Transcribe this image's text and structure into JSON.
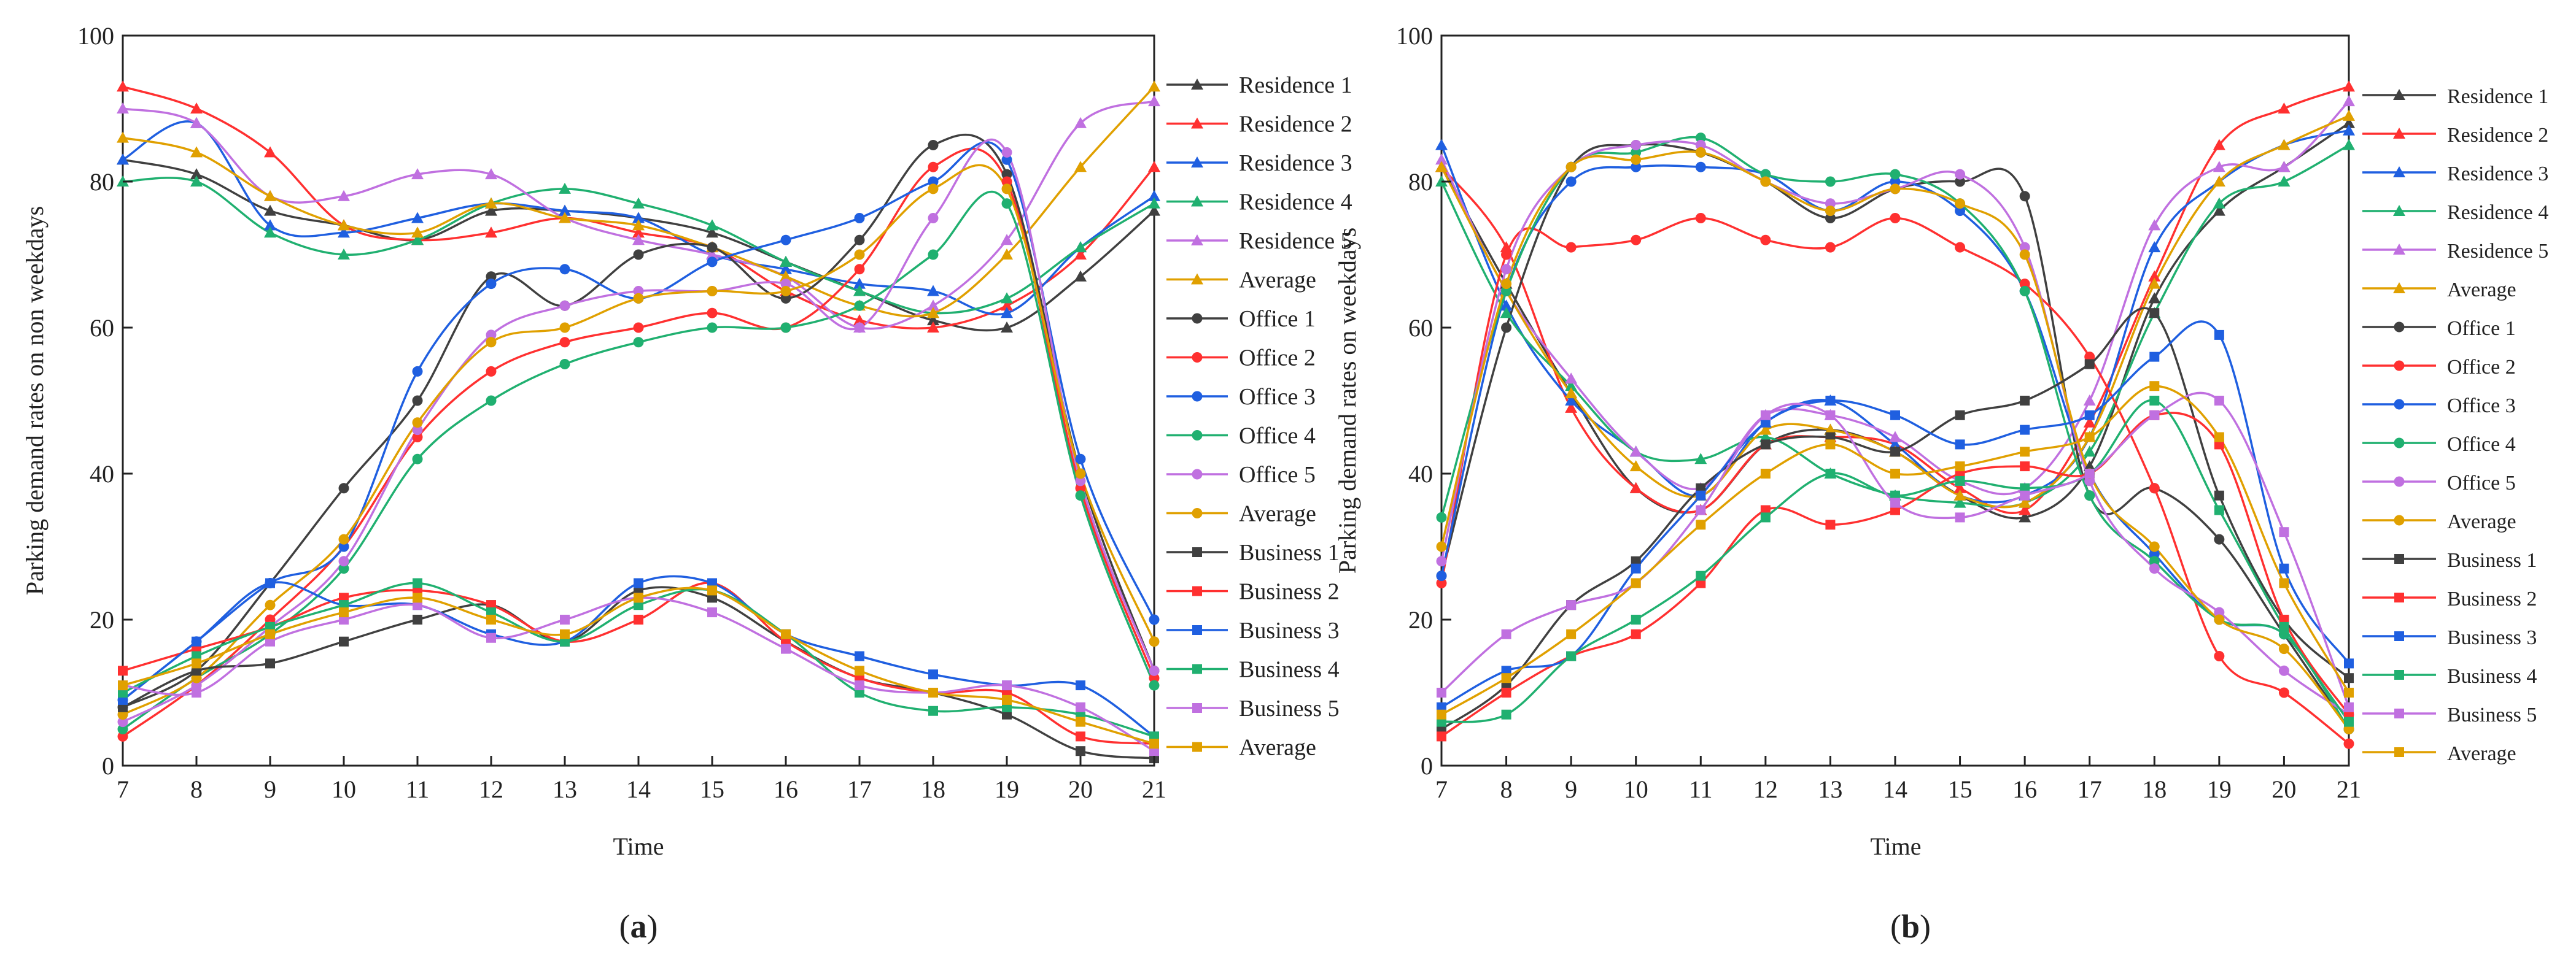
{
  "figure": {
    "panels": [
      {
        "caption_letter": "a"
      },
      {
        "caption_letter": "b"
      }
    ]
  },
  "chart_data": [
    {
      "type": "line",
      "panel": "a",
      "title": "",
      "xlabel": "Time",
      "ylabel": "Parking demand rates on non weekdays",
      "xlim": [
        7,
        21
      ],
      "ylim": [
        0,
        100
      ],
      "xticks": [
        7,
        8,
        9,
        10,
        11,
        12,
        13,
        14,
        15,
        16,
        17,
        18,
        19,
        20,
        21
      ],
      "yticks": [
        0,
        20,
        40,
        60,
        80,
        100
      ],
      "x": [
        7,
        8,
        9,
        10,
        11,
        12,
        13,
        14,
        15,
        16,
        17,
        18,
        19,
        20,
        21
      ],
      "legend_position": "right",
      "series": [
        {
          "name": "Residence 1",
          "color": "#404040",
          "marker": "triangle",
          "values": [
            83,
            81,
            76,
            74,
            72,
            76,
            76,
            75,
            73,
            69,
            65,
            61,
            60,
            67,
            76
          ]
        },
        {
          "name": "Residence 2",
          "color": "#ff3030",
          "marker": "triangle",
          "values": [
            93,
            90,
            84,
            74,
            72,
            73,
            75,
            73,
            71,
            65,
            61,
            60,
            63,
            70,
            82
          ]
        },
        {
          "name": "Residence 3",
          "color": "#1f5fe0",
          "marker": "triangle",
          "values": [
            83,
            88,
            74,
            73,
            75,
            77,
            76,
            75,
            70,
            68,
            66,
            65,
            62,
            71,
            78
          ]
        },
        {
          "name": "Residence 4",
          "color": "#20b070",
          "marker": "triangle",
          "values": [
            80,
            80,
            73,
            70,
            72,
            77,
            79,
            77,
            74,
            69,
            65,
            62,
            64,
            71,
            77
          ]
        },
        {
          "name": "Residence 5",
          "color": "#c070e0",
          "marker": "triangle",
          "values": [
            90,
            88,
            78,
            78,
            81,
            81,
            75,
            72,
            70,
            67,
            60,
            63,
            72,
            88,
            91
          ]
        },
        {
          "name": "Average",
          "color": "#e0a000",
          "marker": "triangle",
          "values": [
            86,
            84,
            78,
            74,
            73,
            77,
            75,
            74,
            71,
            67,
            63,
            62,
            70,
            82,
            93
          ]
        },
        {
          "name": "Office 1",
          "color": "#404040",
          "marker": "circle",
          "values": [
            8,
            13,
            25,
            38,
            50,
            67,
            63,
            70,
            71,
            64,
            72,
            85,
            81,
            40,
            13
          ]
        },
        {
          "name": "Office 2",
          "color": "#ff3030",
          "marker": "circle",
          "values": [
            4,
            11,
            20,
            30,
            45,
            54,
            58,
            60,
            62,
            60,
            68,
            82,
            80,
            38,
            12
          ]
        },
        {
          "name": "Office 3",
          "color": "#1f5fe0",
          "marker": "circle",
          "values": [
            9,
            17,
            25,
            30,
            54,
            66,
            68,
            64,
            69,
            72,
            75,
            80,
            83,
            42,
            20
          ]
        },
        {
          "name": "Office 4",
          "color": "#20b070",
          "marker": "circle",
          "values": [
            5,
            12,
            18,
            27,
            42,
            50,
            55,
            58,
            60,
            60,
            63,
            70,
            77,
            37,
            11
          ]
        },
        {
          "name": "Office 5",
          "color": "#c070e0",
          "marker": "circle",
          "values": [
            6,
            11,
            19,
            28,
            46,
            59,
            63,
            65,
            65,
            66,
            60,
            75,
            84,
            39,
            13
          ]
        },
        {
          "name": "Average",
          "color": "#e0a000",
          "marker": "circle",
          "values": [
            7,
            12,
            22,
            31,
            47,
            58,
            60,
            64,
            65,
            65,
            70,
            79,
            79,
            40,
            17
          ]
        },
        {
          "name": "Business 1",
          "color": "#404040",
          "marker": "square",
          "values": [
            8,
            13,
            14,
            17,
            20,
            22,
            17,
            24,
            23,
            17,
            12,
            10,
            7,
            2,
            1
          ]
        },
        {
          "name": "Business 2",
          "color": "#ff3030",
          "marker": "square",
          "values": [
            13,
            16,
            19,
            23,
            24,
            22,
            17,
            20,
            25,
            17,
            12,
            10,
            10,
            4,
            3
          ]
        },
        {
          "name": "Business 3",
          "color": "#1f5fe0",
          "marker": "square",
          "values": [
            9,
            17,
            25,
            22,
            22,
            18,
            17,
            25,
            25,
            18,
            15,
            12.5,
            11,
            11,
            4
          ]
        },
        {
          "name": "Business 4",
          "color": "#20b070",
          "marker": "square",
          "values": [
            10,
            15,
            19,
            22,
            25,
            21,
            17,
            22,
            24,
            18,
            10,
            7.5,
            8,
            7,
            4
          ]
        },
        {
          "name": "Business 5",
          "color": "#c070e0",
          "marker": "square",
          "values": [
            11,
            10,
            17,
            20,
            22,
            17.5,
            20,
            23,
            21,
            16,
            11,
            10,
            11,
            8,
            2
          ]
        },
        {
          "name": "Average",
          "color": "#e0a000",
          "marker": "square",
          "values": [
            11,
            14,
            18,
            21,
            23,
            20,
            18,
            23,
            24,
            18,
            13,
            10,
            9,
            6,
            3
          ]
        }
      ]
    },
    {
      "type": "line",
      "panel": "b",
      "title": "",
      "xlabel": "Time",
      "ylabel": "Parking demand rates on weekdays",
      "xlim": [
        7,
        21
      ],
      "ylim": [
        0,
        100
      ],
      "xticks": [
        7,
        8,
        9,
        10,
        11,
        12,
        13,
        14,
        15,
        16,
        17,
        18,
        19,
        20,
        21
      ],
      "yticks": [
        0,
        20,
        40,
        60,
        80,
        100
      ],
      "x": [
        7,
        8,
        9,
        10,
        11,
        12,
        13,
        14,
        15,
        16,
        17,
        18,
        19,
        20,
        21
      ],
      "legend_position": "right",
      "series": [
        {
          "name": "Residence 1",
          "color": "#404040",
          "marker": "triangle",
          "values": [
            82,
            66,
            51,
            38,
            35,
            44,
            46,
            43,
            37,
            34,
            41,
            64,
            76,
            82,
            88
          ]
        },
        {
          "name": "Residence 2",
          "color": "#ff3030",
          "marker": "triangle",
          "values": [
            82,
            71,
            49,
            38,
            35,
            44,
            45,
            44,
            38,
            35,
            47,
            67,
            85,
            90,
            93
          ]
        },
        {
          "name": "Residence 3",
          "color": "#1f5fe0",
          "marker": "triangle",
          "values": [
            85,
            63,
            50,
            43,
            37,
            47,
            50,
            44,
            37,
            37,
            45,
            71,
            80,
            85,
            87
          ]
        },
        {
          "name": "Residence 4",
          "color": "#20b070",
          "marker": "triangle",
          "values": [
            80,
            62,
            52,
            43,
            42,
            45,
            40,
            37,
            36,
            36,
            43,
            62,
            77,
            80,
            85
          ]
        },
        {
          "name": "Residence 5",
          "color": "#c070e0",
          "marker": "triangle",
          "values": [
            83,
            65,
            53,
            43,
            38,
            48,
            48,
            45,
            39,
            38,
            50,
            74,
            82,
            82,
            91
          ]
        },
        {
          "name": "Average",
          "color": "#e0a000",
          "marker": "triangle",
          "values": [
            82,
            65,
            51,
            41,
            37,
            46,
            46,
            43,
            37,
            36,
            45,
            66,
            80,
            85,
            89
          ]
        },
        {
          "name": "Office 1",
          "color": "#404040",
          "marker": "circle",
          "values": [
            26,
            60,
            82,
            85,
            84,
            80,
            75,
            79,
            80,
            78,
            37,
            38,
            31,
            18,
            5
          ]
        },
        {
          "name": "Office 2",
          "color": "#ff3030",
          "marker": "circle",
          "values": [
            25,
            70,
            71,
            72,
            75,
            72,
            71,
            75,
            71,
            66,
            56,
            38,
            15,
            10,
            3
          ]
        },
        {
          "name": "Office 3",
          "color": "#1f5fe0",
          "marker": "circle",
          "values": [
            26,
            65,
            80,
            82,
            82,
            81,
            76,
            80,
            76,
            65,
            40,
            29,
            20,
            18,
            5
          ]
        },
        {
          "name": "Office 4",
          "color": "#20b070",
          "marker": "circle",
          "values": [
            34,
            65,
            82,
            84,
            86,
            81,
            80,
            81,
            77,
            65,
            37,
            28,
            20,
            18,
            5
          ]
        },
        {
          "name": "Office 5",
          "color": "#c070e0",
          "marker": "circle",
          "values": [
            28,
            68,
            82,
            85,
            85,
            80,
            77,
            79,
            81,
            71,
            39,
            27,
            21,
            13,
            7
          ]
        },
        {
          "name": "Average",
          "color": "#e0a000",
          "marker": "circle",
          "values": [
            30,
            66,
            82,
            83,
            84,
            80,
            76,
            79,
            77,
            70,
            40,
            30,
            20,
            16,
            5
          ]
        },
        {
          "name": "Business 1",
          "color": "#404040",
          "marker": "square",
          "values": [
            5,
            11,
            22,
            28,
            38,
            44,
            45,
            43,
            48,
            50,
            55,
            62,
            37,
            20,
            12
          ]
        },
        {
          "name": "Business 2",
          "color": "#ff3030",
          "marker": "square",
          "values": [
            4,
            10,
            15,
            18,
            25,
            35,
            33,
            35,
            40,
            41,
            40,
            48,
            44,
            20,
            7
          ]
        },
        {
          "name": "Business 3",
          "color": "#1f5fe0",
          "marker": "square",
          "values": [
            8,
            13,
            15,
            27,
            37,
            47,
            50,
            48,
            44,
            46,
            48,
            56,
            59,
            27,
            14
          ]
        },
        {
          "name": "Business 4",
          "color": "#20b070",
          "marker": "square",
          "values": [
            6,
            7,
            15,
            20,
            26,
            34,
            40,
            37,
            39,
            38,
            40,
            50,
            35,
            19,
            6
          ]
        },
        {
          "name": "Business 5",
          "color": "#c070e0",
          "marker": "square",
          "values": [
            10,
            18,
            22,
            25,
            35,
            48,
            48,
            36,
            34,
            37,
            40,
            48,
            50,
            32,
            8
          ]
        },
        {
          "name": "Average",
          "color": "#e0a000",
          "marker": "square",
          "values": [
            7,
            12,
            18,
            25,
            33,
            40,
            44,
            40,
            41,
            43,
            45,
            52,
            45,
            25,
            10
          ]
        }
      ]
    }
  ]
}
